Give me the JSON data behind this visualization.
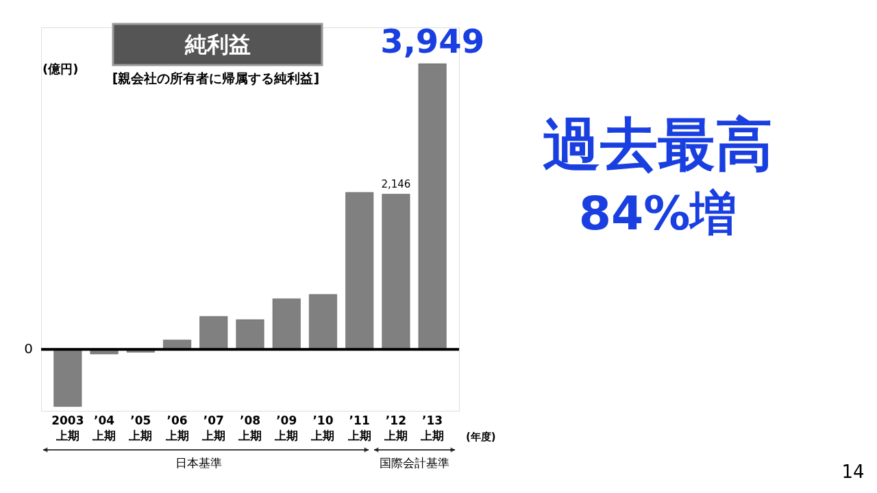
{
  "chart_data": {
    "type": "bar",
    "title": "純利益",
    "categories": [
      "2003\n上期",
      "’04\n上期",
      "’05\n上期",
      "’06\n上期",
      "’07\n上期",
      "’08\n上期",
      "’09\n上期",
      "’10\n上期",
      "’11\n上期",
      "’12\n上期",
      "’13\n上期"
    ],
    "values": [
      -790,
      -65,
      -40,
      130,
      455,
      410,
      700,
      760,
      2170,
      2146,
      3949
    ],
    "value_labels": [
      null,
      null,
      null,
      null,
      null,
      null,
      null,
      null,
      null,
      "2,146",
      "3,949"
    ],
    "color": "#808080",
    "ylim": [
      -850,
      4450
    ],
    "grid": false,
    "ref_lines": [
      {
        "axis": "y",
        "value": 0,
        "color": "#000000"
      }
    ],
    "annotations": [
      "0",
      "(億円)",
      "[親会社の所有者に帰属する純利益]",
      "過去最高",
      "84%増",
      "(年度)",
      "日本基準",
      "国際会計基準",
      "14"
    ]
  }
}
